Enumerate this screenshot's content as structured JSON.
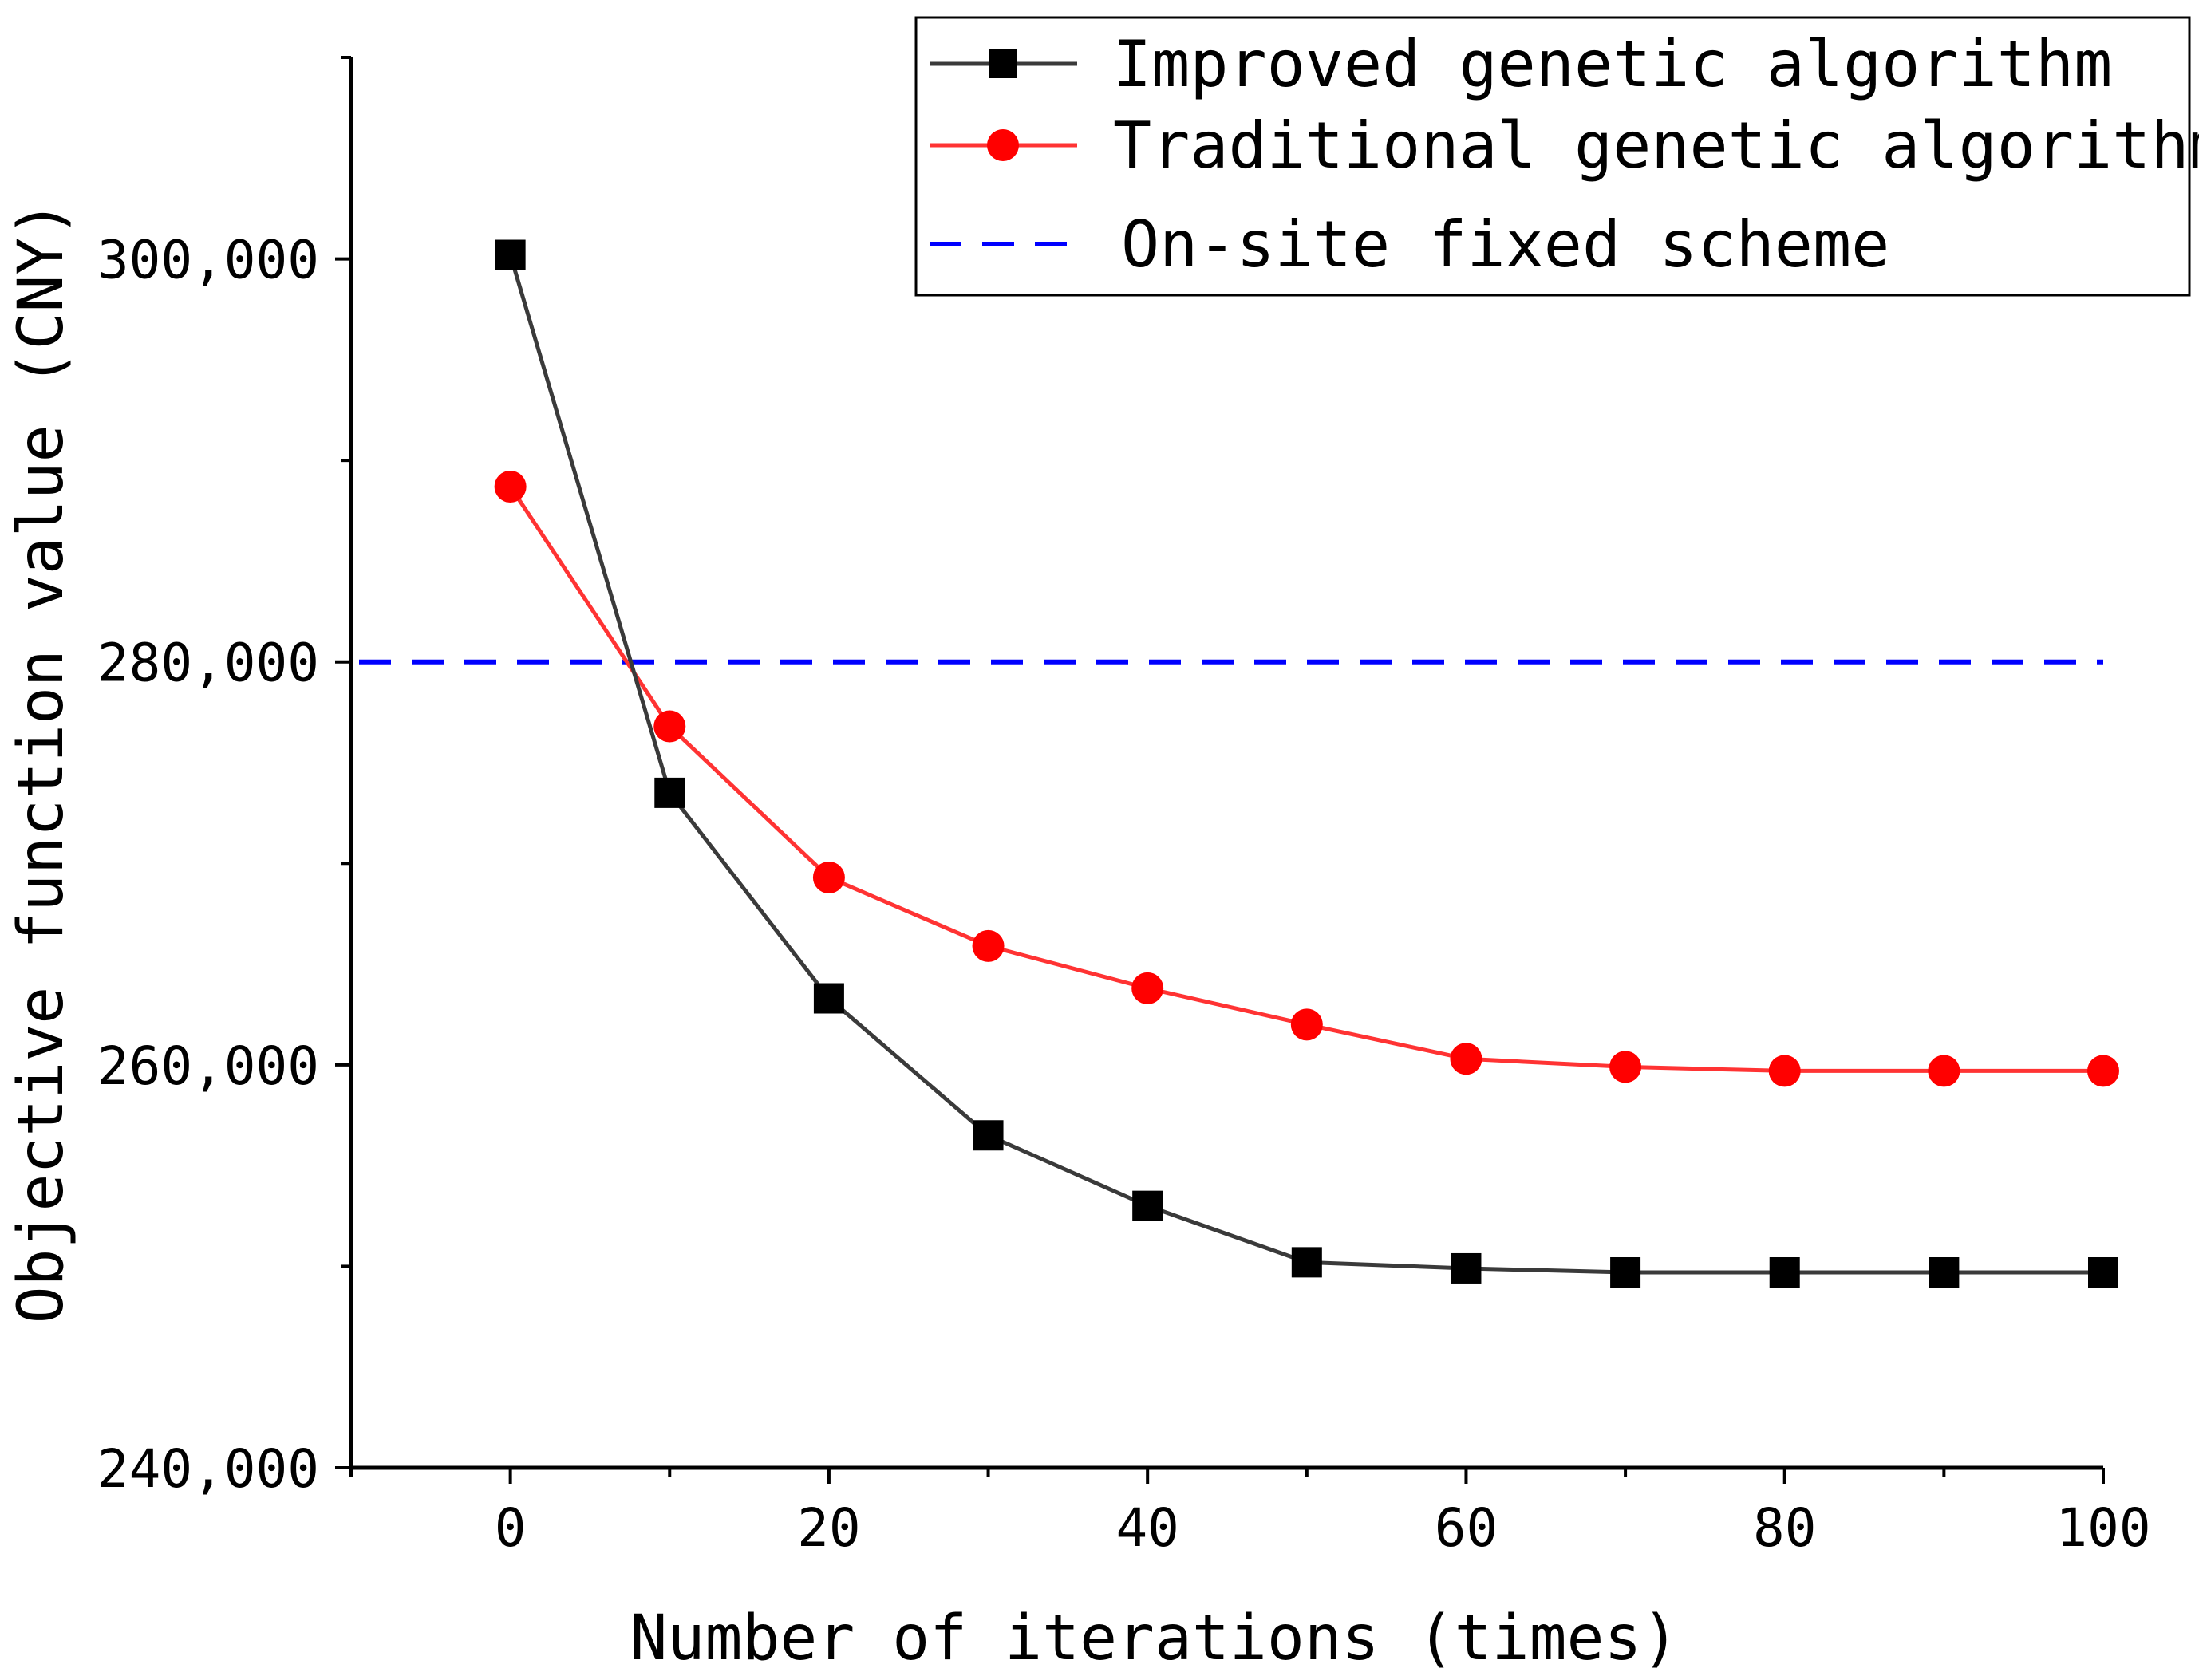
{
  "chart_data": {
    "type": "line",
    "xlabel": "Number of iterations (times)",
    "ylabel": "Objective function value (CNY)",
    "xlim": [
      -10,
      100
    ],
    "ylim": [
      240000,
      310000
    ],
    "x_ticks": [
      0,
      20,
      40,
      60,
      80,
      100
    ],
    "x_tick_labels": [
      "0",
      "20",
      "40",
      "60",
      "80",
      "100"
    ],
    "y_ticks": [
      240000,
      260000,
      280000,
      300000
    ],
    "y_tick_labels": [
      "240,000",
      "260,000",
      "280,000",
      "300,000"
    ],
    "x": [
      0,
      10,
      20,
      30,
      40,
      50,
      60,
      70,
      80,
      90,
      100
    ],
    "series": [
      {
        "name": "Improved genetic algorithm",
        "color": "#3a3a3a",
        "marker_color": "#000000",
        "marker": "square",
        "values": [
          300200,
          273500,
          263300,
          256500,
          253000,
          250200,
          249900,
          249700,
          249700,
          249700,
          249700
        ]
      },
      {
        "name": "Traditional genetic algorithm",
        "color": "#ff3333",
        "marker_color": "#ff0000",
        "marker": "circle",
        "values": [
          288700,
          276800,
          269300,
          265900,
          263800,
          262000,
          260300,
          259900,
          259700,
          259700,
          259700
        ]
      }
    ],
    "reference_lines": [
      {
        "name": "On-site fixed scheme",
        "value": 280000,
        "color": "#0000ff",
        "style": "dashed"
      }
    ],
    "legend": {
      "position": "top-right",
      "entries": [
        "Improved genetic algorithm",
        "Traditional genetic algorithm",
        "On-site fixed scheme"
      ]
    }
  }
}
